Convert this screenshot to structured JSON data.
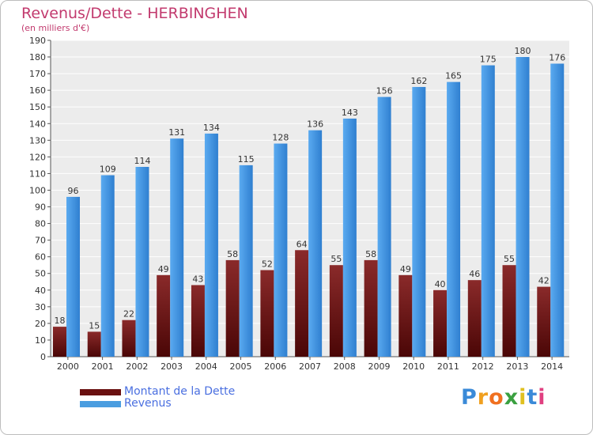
{
  "header": {
    "title": "Revenus/Dette - HERBINGHEN",
    "subtitle": "(en milliers d'€)"
  },
  "chart_data": {
    "type": "bar",
    "categories": [
      "2000",
      "2001",
      "2002",
      "2003",
      "2004",
      "2005",
      "2006",
      "2007",
      "2008",
      "2009",
      "2010",
      "2011",
      "2012",
      "2013",
      "2014"
    ],
    "series": [
      {
        "name": "Montant de la Dette",
        "color": "#7a1a1a",
        "values": [
          18,
          15,
          22,
          49,
          43,
          58,
          52,
          64,
          55,
          58,
          49,
          40,
          46,
          55,
          42
        ]
      },
      {
        "name": "Revenus",
        "color": "#4a9de0",
        "values": [
          96,
          109,
          114,
          131,
          134,
          115,
          128,
          136,
          143,
          156,
          162,
          165,
          175,
          180,
          176
        ]
      }
    ],
    "ylim": [
      0,
      190
    ],
    "yticks": [
      0,
      10,
      20,
      30,
      40,
      50,
      60,
      70,
      80,
      90,
      100,
      110,
      120,
      130,
      140,
      150,
      160,
      170,
      180,
      190
    ],
    "grid": true,
    "legend_position": "bottom-left"
  },
  "legend": {
    "items": [
      {
        "label": "Montant de la Dette",
        "color": "#6a1010"
      },
      {
        "label": "Revenus",
        "color": "#4a9de0"
      }
    ]
  },
  "logo": {
    "letters": [
      {
        "ch": "P",
        "color": "#3a8ad8"
      },
      {
        "ch": "r",
        "color": "#f0a020"
      },
      {
        "ch": "o",
        "color": "#f07020"
      },
      {
        "ch": "x",
        "color": "#3aa040"
      },
      {
        "ch": "i",
        "color": "#e0c020"
      },
      {
        "ch": "t",
        "color": "#3a8ad8"
      },
      {
        "ch": "i",
        "color": "#e04080"
      }
    ]
  }
}
